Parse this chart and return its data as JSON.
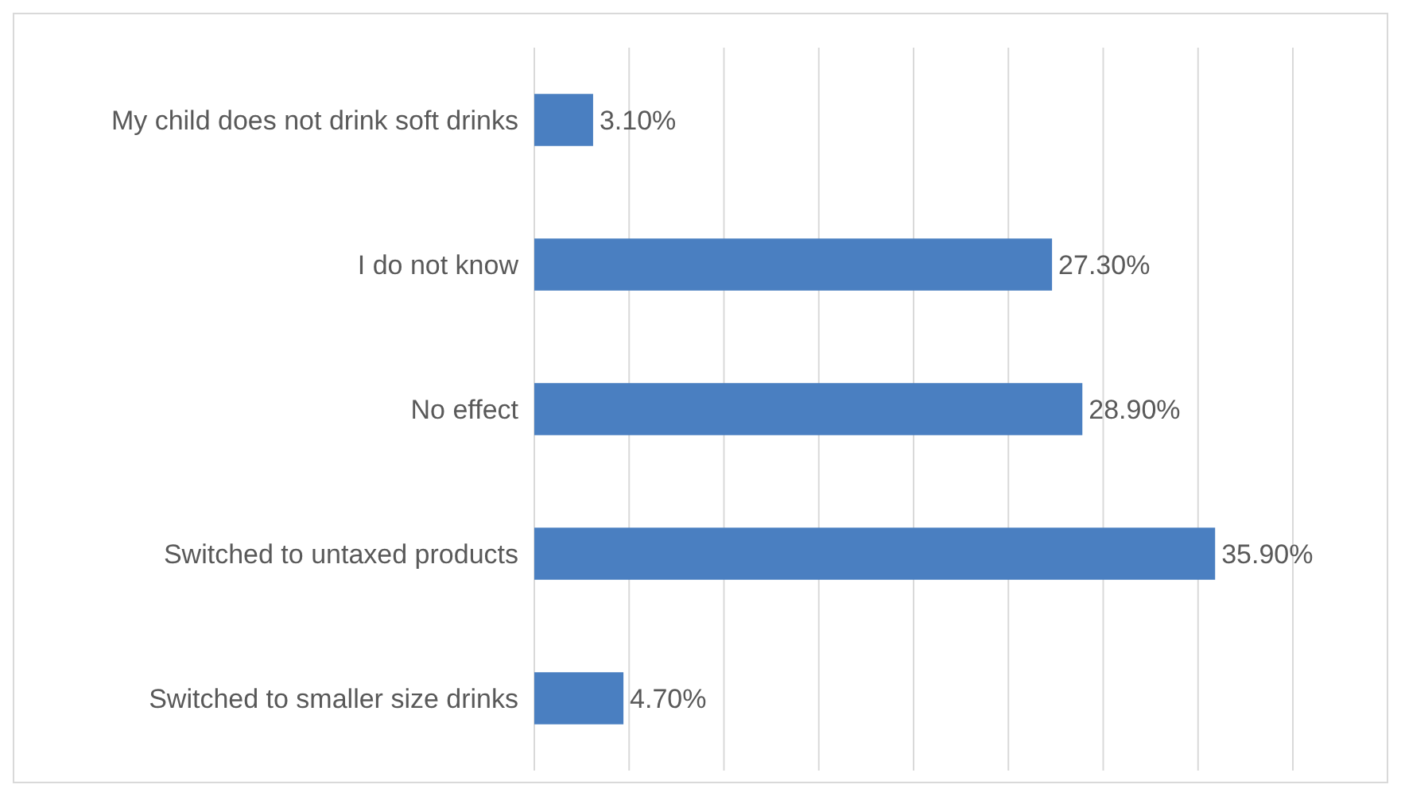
{
  "chart_data": {
    "type": "bar",
    "orientation": "horizontal",
    "categories": [
      "My child does not drink soft drinks",
      "I do not know",
      "No effect",
      "Switched to untaxed products",
      "Switched to smaller size drinks"
    ],
    "values": [
      3.1,
      27.3,
      28.9,
      35.9,
      4.7
    ],
    "value_labels": [
      "3.10%",
      "27.30%",
      "28.90%",
      "35.90%",
      "4.70%"
    ],
    "color": "#4a7fc1",
    "xlim": [
      0,
      40
    ],
    "xticks": [
      {
        "value": 0,
        "label": null
      },
      {
        "value": 5,
        "label": null
      },
      {
        "value": 10,
        "label": null
      },
      {
        "value": 15,
        "label": null
      },
      {
        "value": 20,
        "label": null
      },
      {
        "value": 25,
        "label": null
      },
      {
        "value": 30,
        "label": null
      },
      {
        "value": 35,
        "label": null
      },
      {
        "value": 40,
        "label": null
      }
    ],
    "grid": "x",
    "tick_labels": "y"
  }
}
